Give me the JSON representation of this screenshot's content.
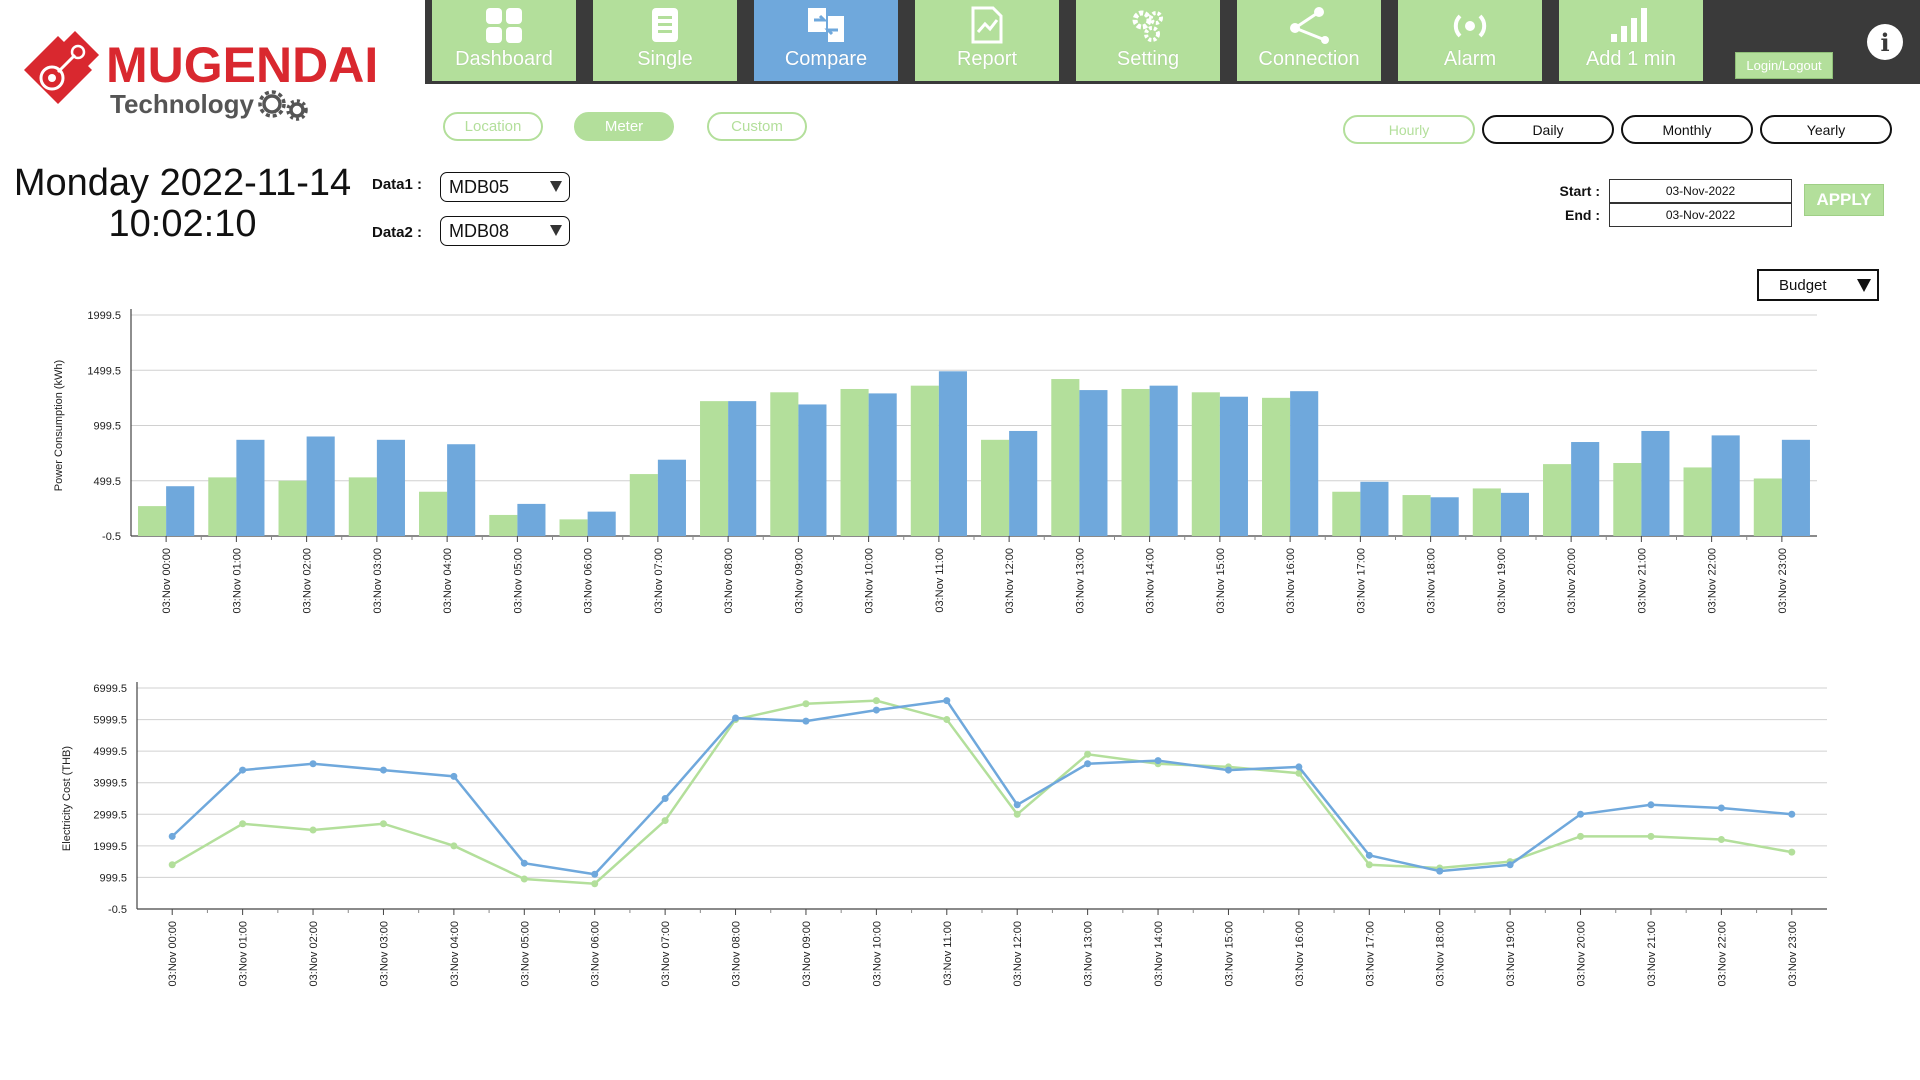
{
  "brand": {
    "name": "MUGENDAI",
    "sub": "Technology"
  },
  "nav": [
    {
      "label": "Dashboard",
      "icon": "dashboard-icon",
      "active": false
    },
    {
      "label": "Single",
      "icon": "document-icon",
      "active": false
    },
    {
      "label": "Compare",
      "icon": "compare-icon",
      "active": true
    },
    {
      "label": "Report",
      "icon": "report-icon",
      "active": false
    },
    {
      "label": "Setting",
      "icon": "gears-icon",
      "active": false
    },
    {
      "label": "Connection",
      "icon": "share-icon",
      "active": false
    },
    {
      "label": "Alarm",
      "icon": "alarm-icon",
      "active": false
    },
    {
      "label": "Add 1 min",
      "icon": "signal-bars-icon",
      "active": false
    }
  ],
  "login_label": "Login/Logout",
  "info_label": "i",
  "view_tabs": [
    "Location",
    "Meter",
    "Custom"
  ],
  "period_tabs": [
    "Hourly",
    "Daily",
    "Monthly",
    "Yearly"
  ],
  "clock": {
    "date": "Monday 2022-11-14",
    "time": "10:02:10"
  },
  "data1": {
    "label": "Data1 :",
    "value": "MDB05"
  },
  "data2": {
    "label": "Data2 :",
    "value": "MDB08"
  },
  "range": {
    "start_label": "Start :",
    "start": "03-Nov-2022",
    "end_label": "End :",
    "end": "03-Nov-2022"
  },
  "apply_label": "APPLY",
  "budget_label": "Budget",
  "colors": {
    "green": "#b3df9b",
    "blue": "#6fa8dc",
    "nav_bg": "#3a3a3a",
    "brand_red": "#d9282f"
  },
  "chart_data": [
    {
      "type": "bar",
      "ylabel": "Power Consumption (kWh)",
      "ylim": [
        -0.5,
        1999.5
      ],
      "yticks": [
        "1999.5",
        "1499.5",
        "999.5",
        "499.5",
        "-0.5"
      ],
      "categories": [
        "03:Nov 00:00",
        "03:Nov 01:00",
        "03:Nov 02:00",
        "03:Nov 03:00",
        "03:Nov 04:00",
        "03:Nov 05:00",
        "03:Nov 06:00",
        "03:Nov 07:00",
        "03:Nov 08:00",
        "03:Nov 09:00",
        "03:Nov 10:00",
        "03:Nov 11:00",
        "03:Nov 12:00",
        "03:Nov 13:00",
        "03:Nov 14:00",
        "03:Nov 15:00",
        "03:Nov 16:00",
        "03:Nov 17:00",
        "03:Nov 18:00",
        "03:Nov 19:00",
        "03:Nov 20:00",
        "03:Nov 21:00",
        "03:Nov 22:00",
        "03:Nov 23:00"
      ],
      "series": [
        {
          "values": [
            270,
            530,
            500,
            530,
            400,
            190,
            150,
            560,
            1220,
            1300,
            1330,
            1360,
            870,
            1420,
            1330,
            1300,
            1250,
            400,
            370,
            430,
            650,
            660,
            620,
            520
          ]
        },
        {
          "values": [
            450,
            870,
            900,
            870,
            830,
            290,
            220,
            690,
            1220,
            1190,
            1290,
            1490,
            950,
            1320,
            1360,
            1260,
            1310,
            490,
            350,
            390,
            850,
            950,
            910,
            870
          ]
        }
      ]
    },
    {
      "type": "line",
      "ylabel": "Electricity Cost (THB)",
      "ylim": [
        -0.5,
        6999.5
      ],
      "yticks": [
        "6999.5",
        "5999.5",
        "4999.5",
        "3999.5",
        "2999.5",
        "1999.5",
        "999.5",
        "-0.5"
      ],
      "categories": [
        "03:Nov 00:00",
        "03:Nov 01:00",
        "03:Nov 02:00",
        "03:Nov 03:00",
        "03:Nov 04:00",
        "03:Nov 05:00",
        "03:Nov 06:00",
        "03:Nov 07:00",
        "03:Nov 08:00",
        "03:Nov 09:00",
        "03:Nov 10:00",
        "03:Nov 11:00",
        "03:Nov 12:00",
        "03:Nov 13:00",
        "03:Nov 14:00",
        "03:Nov 15:00",
        "03:Nov 16:00",
        "03:Nov 17:00",
        "03:Nov 18:00",
        "03:Nov 19:00",
        "03:Nov 20:00",
        "03:Nov 21:00",
        "03:Nov 22:00",
        "03:Nov 23:00"
      ],
      "series": [
        {
          "values": [
            1400,
            2700,
            2500,
            2700,
            2000,
            950,
            800,
            2800,
            6000,
            6500,
            6600,
            6000,
            3000,
            4900,
            4600,
            4500,
            4300,
            1400,
            1300,
            1500,
            2300,
            2300,
            2200,
            1800
          ]
        },
        {
          "values": [
            2300,
            4400,
            4600,
            4400,
            4200,
            1450,
            1100,
            3500,
            6050,
            5950,
            6300,
            6600,
            3300,
            4600,
            4700,
            4400,
            4500,
            1700,
            1200,
            1400,
            3000,
            3300,
            3200,
            3000
          ]
        }
      ]
    }
  ]
}
